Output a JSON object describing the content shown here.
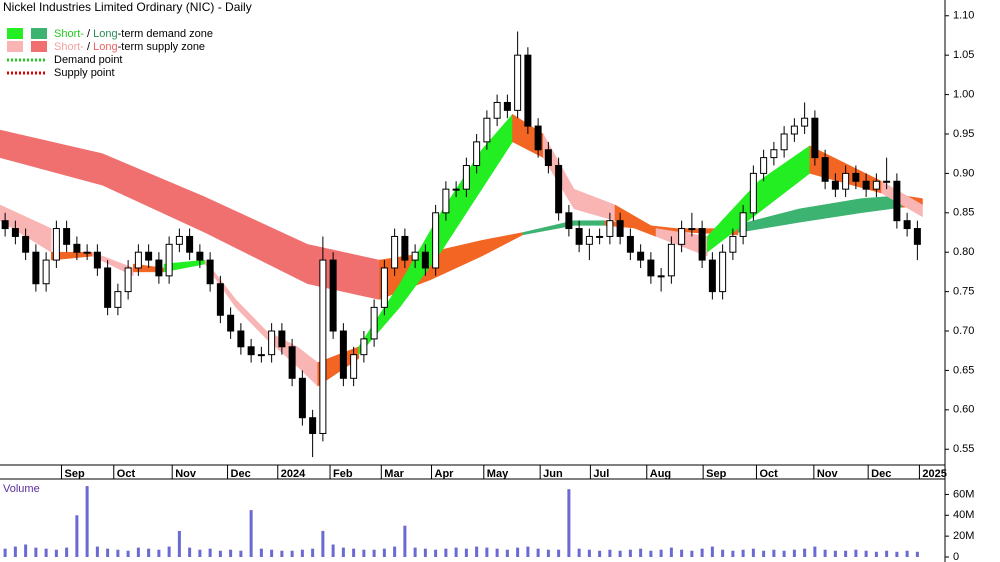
{
  "chart_data": {
    "type": "candlestick",
    "title": "Nickel Industries Limited Ordinary (NIC) - Daily",
    "xlim": [
      0,
      92
    ],
    "xticks": [
      {
        "value": 6.0,
        "label": "Sep"
      },
      {
        "value": 11.1,
        "label": "Oct"
      },
      {
        "value": 16.8,
        "label": "Nov"
      },
      {
        "value": 22.2,
        "label": "Dec"
      },
      {
        "value": 27.1,
        "label": "2024"
      },
      {
        "value": 32.2,
        "label": "Feb"
      },
      {
        "value": 37.2,
        "label": "Mar"
      },
      {
        "value": 42.1,
        "label": "Apr"
      },
      {
        "value": 47.2,
        "label": "May"
      },
      {
        "value": 52.7,
        "label": "Jun"
      },
      {
        "value": 57.6,
        "label": "Jul"
      },
      {
        "value": 63.1,
        "label": "Aug"
      },
      {
        "value": 68.6,
        "label": "Sep"
      },
      {
        "value": 73.8,
        "label": "Oct"
      },
      {
        "value": 79.4,
        "label": "Nov"
      },
      {
        "value": 84.7,
        "label": "Dec"
      },
      {
        "value": 89.7,
        "label": "2025"
      }
    ],
    "ylim": [
      0.53,
      1.12
    ],
    "yticks": [
      {
        "value": 1.1,
        "label": "1.10"
      },
      1.05,
      {
        "value": 1,
        "label": "1.00"
      },
      0.95,
      {
        "value": 0.9,
        "label": "0.90"
      },
      0.85,
      {
        "value": 0.8,
        "label": "0.80"
      },
      0.75,
      {
        "value": 0.7,
        "label": "0.70"
      },
      0.65,
      {
        "value": 0.6,
        "label": "0.60"
      },
      0.55
    ],
    "candle_up_color": "#ffffff",
    "candle_down_color": "#000000",
    "open": [
      0.84,
      0.83,
      0.82,
      0.8,
      0.76,
      0.79,
      0.83,
      0.81,
      0.8,
      0.8,
      0.78,
      0.73,
      0.75,
      0.78,
      0.8,
      0.79,
      0.77,
      0.81,
      0.82,
      0.8,
      0.79,
      0.76,
      0.72,
      0.7,
      0.68,
      0.67,
      0.67,
      0.7,
      0.68,
      0.64,
      0.59,
      0.57,
      0.79,
      0.7,
      0.64,
      0.67,
      0.69,
      0.73,
      0.78,
      0.82,
      0.79,
      0.8,
      0.78,
      0.85,
      0.88,
      0.88,
      0.91,
      0.94,
      0.97,
      0.99,
      0.98,
      1.05,
      0.96,
      0.93,
      0.91,
      0.85,
      0.83,
      0.81,
      0.82,
      0.82,
      0.84,
      0.82,
      0.8,
      0.79,
      0.77,
      0.77,
      0.81,
      0.83,
      0.83,
      0.79,
      0.75,
      0.8,
      0.82,
      0.85,
      0.9,
      0.92,
      0.93,
      0.95,
      0.96,
      0.97,
      0.92,
      0.89,
      0.88,
      0.9,
      0.89,
      0.88,
      0.89,
      0.89,
      0.84,
      0.83
    ],
    "high": [
      0.85,
      0.84,
      0.83,
      0.81,
      0.8,
      0.84,
      0.84,
      0.82,
      0.81,
      0.81,
      0.79,
      0.76,
      0.79,
      0.81,
      0.81,
      0.8,
      0.82,
      0.83,
      0.83,
      0.81,
      0.8,
      0.77,
      0.73,
      0.71,
      0.69,
      0.68,
      0.71,
      0.71,
      0.69,
      0.65,
      0.6,
      0.82,
      0.8,
      0.71,
      0.68,
      0.7,
      0.74,
      0.79,
      0.83,
      0.83,
      0.81,
      0.81,
      0.86,
      0.89,
      0.89,
      0.92,
      0.95,
      0.98,
      1.0,
      1.0,
      1.08,
      1.06,
      0.97,
      0.94,
      0.92,
      0.86,
      0.84,
      0.83,
      0.83,
      0.85,
      0.85,
      0.83,
      0.81,
      0.8,
      0.78,
      0.82,
      0.84,
      0.85,
      0.84,
      0.8,
      0.81,
      0.83,
      0.86,
      0.91,
      0.93,
      0.94,
      0.96,
      0.97,
      0.99,
      0.98,
      0.93,
      0.9,
      0.91,
      0.91,
      0.9,
      0.9,
      0.92,
      0.9,
      0.85,
      0.84
    ],
    "low": [
      0.82,
      0.81,
      0.79,
      0.75,
      0.75,
      0.78,
      0.8,
      0.79,
      0.79,
      0.77,
      0.72,
      0.72,
      0.74,
      0.77,
      0.78,
      0.76,
      0.76,
      0.8,
      0.79,
      0.78,
      0.75,
      0.71,
      0.69,
      0.67,
      0.66,
      0.66,
      0.66,
      0.67,
      0.63,
      0.58,
      0.54,
      0.56,
      0.69,
      0.63,
      0.63,
      0.66,
      0.68,
      0.72,
      0.77,
      0.78,
      0.78,
      0.77,
      0.77,
      0.84,
      0.87,
      0.87,
      0.9,
      0.93,
      0.96,
      0.97,
      0.97,
      0.95,
      0.92,
      0.9,
      0.84,
      0.82,
      0.8,
      0.79,
      0.81,
      0.81,
      0.81,
      0.79,
      0.78,
      0.76,
      0.75,
      0.76,
      0.8,
      0.82,
      0.78,
      0.74,
      0.74,
      0.79,
      0.81,
      0.84,
      0.89,
      0.91,
      0.92,
      0.94,
      0.95,
      0.91,
      0.88,
      0.87,
      0.87,
      0.88,
      0.87,
      0.87,
      0.88,
      0.83,
      0.82,
      0.79
    ],
    "close": [
      0.83,
      0.82,
      0.8,
      0.76,
      0.79,
      0.83,
      0.81,
      0.8,
      0.8,
      0.78,
      0.73,
      0.75,
      0.78,
      0.8,
      0.79,
      0.77,
      0.81,
      0.82,
      0.8,
      0.79,
      0.76,
      0.72,
      0.7,
      0.68,
      0.67,
      0.67,
      0.7,
      0.68,
      0.64,
      0.59,
      0.57,
      0.79,
      0.7,
      0.64,
      0.67,
      0.69,
      0.73,
      0.78,
      0.82,
      0.79,
      0.8,
      0.78,
      0.85,
      0.88,
      0.88,
      0.91,
      0.94,
      0.97,
      0.99,
      0.98,
      1.05,
      0.96,
      0.93,
      0.91,
      0.85,
      0.83,
      0.81,
      0.82,
      0.82,
      0.84,
      0.82,
      0.8,
      0.79,
      0.77,
      0.77,
      0.81,
      0.83,
      0.83,
      0.79,
      0.75,
      0.8,
      0.82,
      0.85,
      0.9,
      0.92,
      0.93,
      0.95,
      0.96,
      0.97,
      0.92,
      0.89,
      0.88,
      0.9,
      0.89,
      0.88,
      0.89,
      0.89,
      0.84,
      0.83,
      0.81
    ],
    "zones": [
      {
        "color": "#f07070",
        "x": [
          0,
          10,
          20,
          30,
          37
        ],
        "upper": [
          0.955,
          0.925,
          0.87,
          0.81,
          0.79
        ],
        "lower": [
          0.92,
          0.885,
          0.825,
          0.76,
          0.74
        ]
      },
      {
        "color": "#f26522",
        "x": [
          37,
          42,
          47,
          51
        ],
        "upper": [
          0.79,
          0.8,
          0.815,
          0.825
        ],
        "lower": [
          0.74,
          0.765,
          0.795,
          0.822
        ]
      },
      {
        "color": "#3cb371",
        "x": [
          51,
          56,
          59
        ],
        "upper": [
          0.825,
          0.84,
          0.84
        ],
        "lower": [
          0.822,
          0.834,
          0.834
        ]
      },
      {
        "color": "#f26522",
        "x": [
          59,
          66,
          72
        ],
        "upper": [
          0.84,
          0.83,
          0.83
        ],
        "lower": [
          0.834,
          0.826,
          0.822
        ]
      },
      {
        "color": "#3cb371",
        "x": [
          72,
          78,
          84,
          88
        ],
        "upper": [
          0.835,
          0.855,
          0.868,
          0.872
        ],
        "lower": [
          0.825,
          0.838,
          0.85,
          0.857
        ]
      },
      {
        "color": "#f26522",
        "x": [
          88,
          90
        ],
        "upper": [
          0.872,
          0.868
        ],
        "lower": [
          0.857,
          0.858
        ]
      },
      {
        "color": "#f9b4b4",
        "x": [
          0,
          5
        ],
        "upper": [
          0.86,
          0.83
        ],
        "lower": [
          0.84,
          0.8
        ]
      },
      {
        "color": "#f26522",
        "x": [
          5,
          9
        ],
        "upper": [
          0.8,
          0.8
        ],
        "lower": [
          0.79,
          0.795
        ]
      },
      {
        "color": "#f9b4b4",
        "x": [
          9,
          13
        ],
        "upper": [
          0.8,
          0.78
        ],
        "lower": [
          0.795,
          0.77
        ]
      },
      {
        "color": "#f26522",
        "x": [
          13,
          16
        ],
        "upper": [
          0.785,
          0.78
        ],
        "lower": [
          0.775,
          0.775
        ]
      },
      {
        "color": "#22ee22",
        "x": [
          16,
          20
        ],
        "upper": [
          0.785,
          0.79
        ],
        "lower": [
          0.775,
          0.785
        ]
      },
      {
        "color": "#f9b4b4",
        "x": [
          20,
          23,
          26,
          29,
          31
        ],
        "upper": [
          0.79,
          0.74,
          0.7,
          0.68,
          0.66
        ],
        "lower": [
          0.785,
          0.73,
          0.69,
          0.655,
          0.63
        ]
      },
      {
        "color": "#f26522",
        "x": [
          31,
          35
        ],
        "upper": [
          0.66,
          0.68
        ],
        "lower": [
          0.63,
          0.665
        ]
      },
      {
        "color": "#22ee22",
        "x": [
          35,
          39,
          43,
          47,
          50
        ],
        "upper": [
          0.68,
          0.76,
          0.85,
          0.93,
          0.975
        ],
        "lower": [
          0.67,
          0.73,
          0.8,
          0.88,
          0.94
        ]
      },
      {
        "color": "#f26522",
        "x": [
          50,
          53
        ],
        "upper": [
          0.975,
          0.95
        ],
        "lower": [
          0.94,
          0.92
        ]
      },
      {
        "color": "#f9b4b4",
        "x": [
          53,
          56,
          60
        ],
        "upper": [
          0.95,
          0.88,
          0.86
        ],
        "lower": [
          0.92,
          0.855,
          0.84
        ]
      },
      {
        "color": "#f26522",
        "x": [
          60,
          64
        ],
        "upper": [
          0.86,
          0.83
        ],
        "lower": [
          0.84,
          0.82
        ]
      },
      {
        "color": "#f9b4b4",
        "x": [
          64,
          69
        ],
        "upper": [
          0.83,
          0.82
        ],
        "lower": [
          0.82,
          0.795
        ]
      },
      {
        "color": "#22ee22",
        "x": [
          69,
          74,
          79
        ],
        "upper": [
          0.82,
          0.89,
          0.935
        ],
        "lower": [
          0.8,
          0.85,
          0.9
        ]
      },
      {
        "color": "#f26522",
        "x": [
          79,
          86
        ],
        "upper": [
          0.935,
          0.89
        ],
        "lower": [
          0.9,
          0.875
        ]
      },
      {
        "color": "#f9b4b4",
        "x": [
          86,
          90
        ],
        "upper": [
          0.89,
          0.86
        ],
        "lower": [
          0.875,
          0.845
        ]
      }
    ],
    "legend": [
      {
        "swatches": [
          "#22ee22",
          "#3cb371"
        ],
        "parts": [
          {
            "text": "Short-",
            "color": "#22cc22"
          },
          {
            "text": " / ",
            "color": "#000000"
          },
          {
            "text": "Long",
            "color": "#2e8b57"
          },
          {
            "text": "-term demand zone",
            "color": "#000000"
          }
        ]
      },
      {
        "swatches": [
          "#f9b4b4",
          "#f07070"
        ],
        "parts": [
          {
            "text": "Short-",
            "color": "#f5a0a0"
          },
          {
            "text": " / ",
            "color": "#000000"
          },
          {
            "text": "Long",
            "color": "#ef6060"
          },
          {
            "text": "-term supply zone",
            "color": "#000000"
          }
        ]
      },
      {
        "line": "#22cc22",
        "parts": [
          {
            "text": "Demand point",
            "color": "#000000"
          }
        ]
      },
      {
        "line": "#dd0000",
        "parts": [
          {
            "text": "Supply point",
            "color": "#000000"
          }
        ]
      }
    ],
    "volume": {
      "label": "Volume",
      "color": "#6a6ad0",
      "ylim": [
        0,
        70
      ],
      "yticks": [
        {
          "value": 60,
          "label": "60M"
        },
        {
          "value": 40,
          "label": "40M"
        },
        {
          "value": 20,
          "label": "20M"
        },
        0
      ],
      "values": [
        8,
        10,
        12,
        9,
        8,
        7,
        9,
        40,
        68,
        10,
        8,
        7,
        6,
        9,
        8,
        7,
        10,
        25,
        9,
        7,
        8,
        6,
        7,
        6,
        45,
        8,
        7,
        6,
        6,
        7,
        8,
        25,
        12,
        9,
        8,
        7,
        7,
        8,
        10,
        30,
        9,
        8,
        7,
        8,
        9,
        8,
        10,
        9,
        8,
        7,
        9,
        10,
        8,
        7,
        7,
        65,
        8,
        7,
        6,
        7,
        6,
        7,
        8,
        6,
        7,
        9,
        7,
        6,
        8,
        10,
        7,
        6,
        7,
        8,
        6,
        7,
        6,
        7,
        8,
        10,
        7,
        6,
        6,
        7,
        6,
        5,
        6,
        5,
        6,
        5
      ]
    }
  }
}
